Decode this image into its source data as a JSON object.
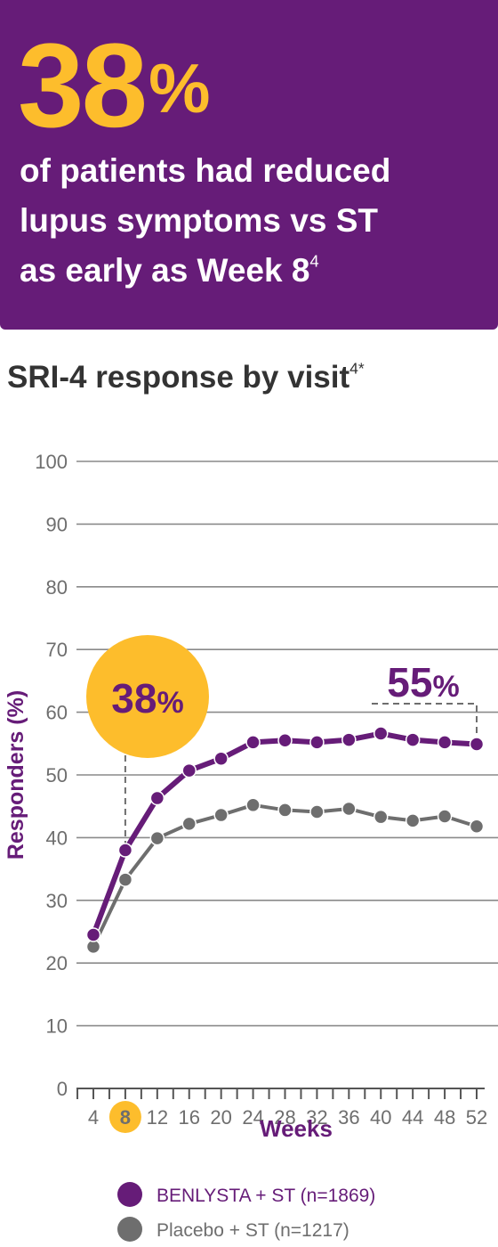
{
  "hero": {
    "stat_value": "38",
    "stat_unit": "%",
    "lines": [
      "of patients had reduced",
      "lupus symptoms vs ST",
      "as early as Week 8"
    ],
    "footnote": "4"
  },
  "chart_title": {
    "text": "SRI-4 response by visit",
    "footnote": "4*"
  },
  "colors": {
    "purple": "#661c78",
    "yellow": "#fdbd2c",
    "grey": "#6e6e6e",
    "gridline": "#8a8a8a"
  },
  "chart_data": {
    "type": "line",
    "xlabel": "Weeks",
    "ylabel": "Responders (%)",
    "ylim": [
      0,
      100
    ],
    "yticks": [
      0,
      10,
      20,
      30,
      40,
      50,
      60,
      70,
      80,
      90,
      100
    ],
    "x": [
      4,
      8,
      12,
      16,
      20,
      24,
      28,
      32,
      36,
      40,
      44,
      48,
      52
    ],
    "highlight_x": 8,
    "grid": true,
    "legend_position": "bottom",
    "series": [
      {
        "name": "BENLYSTA + ST (n=1869)",
        "color": "#661c78",
        "values": [
          24.5,
          38,
          46.3,
          50.7,
          52.6,
          55.2,
          55.5,
          55.2,
          55.6,
          56.6,
          55.6,
          55.2,
          54.9
        ]
      },
      {
        "name": "Placebo + ST (n=1217)",
        "color": "#6e6e6e",
        "values": [
          22.6,
          33.3,
          39.9,
          42.2,
          43.6,
          45.2,
          44.4,
          44.1,
          44.6,
          43.3,
          42.7,
          43.4,
          41.8
        ]
      }
    ],
    "annotations": [
      {
        "value": "38",
        "unit": "%",
        "x": 8,
        "y": 38,
        "style": "yellow-circle"
      },
      {
        "value": "55",
        "unit": "%",
        "x": 52,
        "y": 55,
        "style": "bracket"
      }
    ]
  }
}
